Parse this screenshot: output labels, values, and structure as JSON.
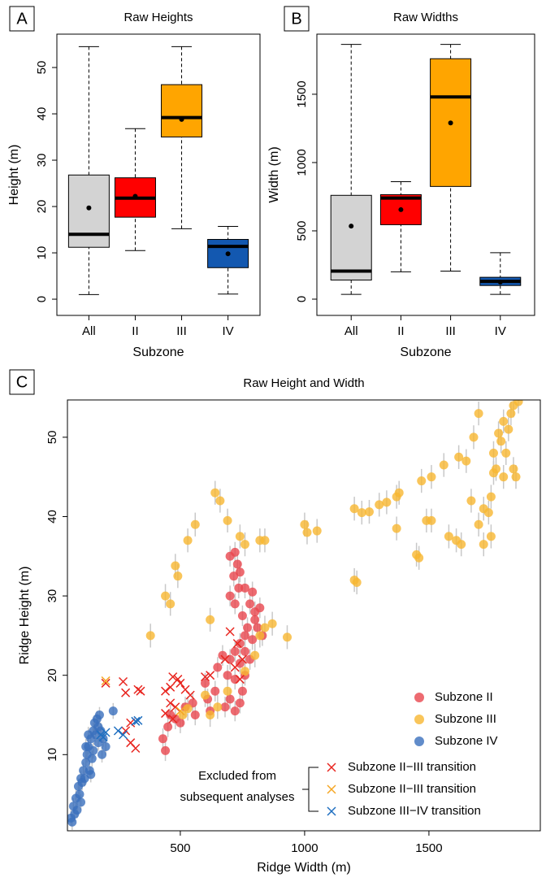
{
  "chart_data": [
    {
      "type": "box",
      "panel": "A",
      "title": "Raw Heights",
      "xlabel": "Subzone",
      "ylabel": "Height (m)",
      "categories": [
        "All",
        "II",
        "III",
        "IV"
      ],
      "colors": [
        "#d3d3d3",
        "#ff0000",
        "#ffa500",
        "#1358b0"
      ],
      "low": [
        1,
        10.5,
        15.2,
        1.1
      ],
      "q1": [
        11.2,
        17.7,
        35,
        6.8
      ],
      "median": [
        14,
        21.8,
        39.2,
        11.4
      ],
      "q3": [
        26.8,
        26.2,
        46.3,
        12.9
      ],
      "high": [
        54.5,
        36.8,
        54.5,
        15.7
      ],
      "mean": [
        19.7,
        22.2,
        38.8,
        9.8
      ],
      "ylim": [
        -3.5,
        57.2
      ],
      "yticks": [
        0,
        10,
        20,
        30,
        40,
        50
      ]
    },
    {
      "type": "box",
      "panel": "B",
      "title": "Raw Widths",
      "xlabel": "Subzone",
      "ylabel": "Width (m)",
      "categories": [
        "All",
        "II",
        "III",
        "IV"
      ],
      "colors": [
        "#d3d3d3",
        "#ff0000",
        "#ffa500",
        "#1358b0"
      ],
      "low": [
        35,
        200,
        205,
        35
      ],
      "q1": [
        140,
        545,
        825,
        100
      ],
      "median": [
        205,
        740,
        1480,
        130
      ],
      "q3": [
        760,
        765,
        1760,
        160
      ],
      "high": [
        1865,
        860,
        1865,
        340
      ],
      "mean": [
        535,
        655,
        1290,
        125
      ],
      "ylim": [
        -119,
        1940
      ],
      "yticks": [
        0,
        500,
        1000,
        1500
      ]
    },
    {
      "type": "scatter",
      "panel": "C",
      "title": "Raw Height and Width",
      "xlabel": "Ridge Width (m)",
      "ylabel": "Ridge Height (m)",
      "xlim": [
        46,
        1948
      ],
      "ylim": [
        0.4,
        54.7
      ],
      "xticks": [
        500,
        1000,
        1500
      ],
      "yticks": [
        10,
        20,
        30,
        40,
        50
      ],
      "legend_note": [
        "Excluded from",
        "subsequent analyses"
      ],
      "series": [
        {
          "name": "Subzone II",
          "marker": "circle",
          "color": "#e8464d",
          "error": 1.3,
          "x": [
            700,
            720,
            730,
            740,
            715,
            735,
            700,
            720,
            760,
            790,
            780,
            800,
            750,
            770,
            810,
            830,
            760,
            790,
            740,
            720,
            700,
            760,
            780,
            690,
            720,
            750,
            700,
            680,
            720,
            740,
            640,
            600,
            610,
            550,
            520,
            560,
            460,
            450,
            430,
            440,
            480,
            500,
            650,
            670,
            800,
            820,
            760,
            740,
            620
          ],
          "y": [
            35,
            35.5,
            34,
            33,
            32.5,
            31,
            30,
            29,
            31,
            30.5,
            29,
            28,
            27.5,
            26,
            26,
            25,
            25,
            24.5,
            24,
            23,
            22,
            23,
            22,
            20,
            19.5,
            18,
            17,
            16,
            15.5,
            16.5,
            18,
            19,
            17,
            16.5,
            16,
            15,
            15,
            13.5,
            12,
            10.5,
            14.5,
            14,
            21,
            22.5,
            27,
            28.5,
            20,
            21.5,
            15.5
          ]
        },
        {
          "name": "Subzone III",
          "marker": "circle",
          "color": "#f7b731",
          "error": 1.5,
          "x": [
            640,
            660,
            690,
            740,
            760,
            820,
            840,
            440,
            460,
            480,
            490,
            530,
            560,
            380,
            620,
            840,
            870,
            930,
            820,
            1000,
            1010,
            1050,
            1200,
            1230,
            1260,
            1300,
            1330,
            1370,
            1380,
            1370,
            1200,
            1210,
            1450,
            1460,
            1470,
            1490,
            1510,
            1510,
            1560,
            1620,
            1580,
            1610,
            1630,
            1650,
            1670,
            1700,
            1720,
            1740,
            1750,
            1760,
            1770,
            1780,
            1790,
            1800,
            1810,
            1820,
            1830,
            1840,
            1860,
            1800,
            1760,
            1840,
            1850,
            1720,
            1750,
            1680,
            1700,
            510,
            530,
            650,
            620,
            690,
            760,
            800,
            600
          ],
          "y": [
            43,
            42,
            39.5,
            37.5,
            36.5,
            37,
            37,
            30,
            29,
            33.8,
            32.5,
            37,
            39,
            25,
            27,
            26,
            26.5,
            24.8,
            25,
            39,
            38,
            38.2,
            41,
            40.5,
            40.6,
            41.5,
            41.8,
            42.5,
            43,
            38.5,
            32,
            31.7,
            35.2,
            34.8,
            44.5,
            39.5,
            39.5,
            45,
            46.5,
            47.5,
            37.5,
            37,
            36.5,
            47,
            42,
            39,
            41,
            40.5,
            42.5,
            48,
            46,
            50.5,
            49.5,
            52,
            48,
            51,
            53,
            54,
            54.5,
            45,
            45.5,
            46,
            45,
            36.5,
            37.5,
            50,
            53,
            15,
            15.8,
            16,
            15,
            18,
            20.5,
            22.5,
            17.5
          ]
        },
        {
          "name": "Subzone IV",
          "marker": "circle",
          "color": "#3a6fbd",
          "error": 1.0,
          "x": [
            60,
            70,
            80,
            90,
            100,
            95,
            110,
            120,
            125,
            130,
            140,
            150,
            160,
            170,
            155,
            165,
            180,
            190,
            200,
            145,
            135,
            115,
            105,
            85,
            75,
            65,
            230,
            175,
            185,
            130,
            150,
            170,
            120,
            100,
            140
          ],
          "y": [
            2,
            3.5,
            4.5,
            6,
            7,
            5,
            8,
            9,
            10,
            11,
            12,
            13,
            12.5,
            11.5,
            14,
            14.5,
            13,
            12,
            11,
            9.5,
            8,
            7,
            6.5,
            3,
            2.5,
            1.5,
            15.5,
            15,
            10,
            12.5,
            10.5,
            13.5,
            11,
            4,
            7.5
          ]
        },
        {
          "name": "Subzone II−III transition",
          "marker": "x",
          "color": "#e8251f",
          "x": [
            200,
            270,
            280,
            330,
            340,
            280,
            300,
            320,
            300,
            700,
            730,
            750,
            720,
            600,
            620,
            470,
            490,
            500,
            520,
            540,
            460,
            440,
            460,
            470,
            480,
            440,
            680,
            740
          ],
          "y": [
            19,
            19.2,
            17.8,
            18.2,
            18,
            13,
            11.5,
            10.8,
            14,
            25.5,
            24,
            22,
            21,
            19.8,
            20,
            19.8,
            19.5,
            19,
            18.2,
            17.5,
            18.5,
            18,
            16.5,
            14.5,
            16,
            15.2,
            22,
            19.5
          ]
        },
        {
          "name": "Subzone II−III transition",
          "marker": "x",
          "color": "#f5a623",
          "x": [
            200,
            500
          ],
          "y": [
            19.3,
            15.5
          ]
        },
        {
          "name": "Subzone III−IV transition",
          "marker": "x",
          "color": "#1f6fc0",
          "x": [
            180,
            200,
            250,
            270,
            320,
            330,
            190
          ],
          "y": [
            12.5,
            12.8,
            13,
            12.5,
            14.2,
            14.3,
            12.2
          ]
        }
      ]
    }
  ]
}
